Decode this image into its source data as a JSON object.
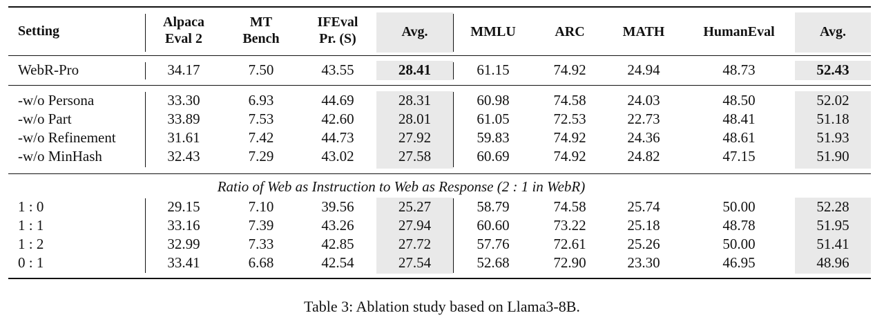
{
  "table": {
    "headers": {
      "setting": "Setting",
      "alpaca": [
        "Alpaca",
        "Eval 2"
      ],
      "mt": [
        "MT",
        "Bench"
      ],
      "ifeval": [
        "IFEval",
        "Pr. (S)"
      ],
      "avg1": "Avg.",
      "mmlu": "MMLU",
      "arc": "ARC",
      "math": "MATH",
      "humaneval": "HumanEval",
      "avg2": "Avg."
    },
    "main_row": {
      "setting": "WebR-Pro",
      "values": [
        "34.17",
        "7.50",
        "43.55",
        "28.41",
        "61.15",
        "74.92",
        "24.94",
        "48.73",
        "52.43"
      ]
    },
    "ablation_rows": [
      {
        "setting": "-w/o Persona",
        "values": [
          "33.30",
          "6.93",
          "44.69",
          "28.31",
          "60.98",
          "74.58",
          "24.03",
          "48.50",
          "52.02"
        ]
      },
      {
        "setting": "-w/o Part",
        "values": [
          "33.89",
          "7.53",
          "42.60",
          "28.01",
          "61.05",
          "72.53",
          "22.73",
          "48.41",
          "51.18"
        ]
      },
      {
        "setting": "-w/o Refinement",
        "values": [
          "31.61",
          "7.42",
          "44.73",
          "27.92",
          "59.83",
          "74.92",
          "24.36",
          "48.61",
          "51.93"
        ]
      },
      {
        "setting": "-w/o MinHash",
        "values": [
          "32.43",
          "7.29",
          "43.02",
          "27.58",
          "60.69",
          "74.92",
          "24.82",
          "47.15",
          "51.90"
        ]
      }
    ],
    "ratio_title": "Ratio of Web as Instruction to Web as Response (2 : 1 in WebR)",
    "ratio_rows": [
      {
        "setting": "1 : 0",
        "values": [
          "29.15",
          "7.10",
          "39.56",
          "25.27",
          "58.79",
          "74.58",
          "25.74",
          "50.00",
          "52.28"
        ]
      },
      {
        "setting": "1 : 1",
        "values": [
          "33.16",
          "7.39",
          "43.26",
          "27.94",
          "60.60",
          "73.22",
          "25.18",
          "48.78",
          "51.95"
        ]
      },
      {
        "setting": "1 : 2",
        "values": [
          "32.99",
          "7.33",
          "42.85",
          "27.72",
          "57.76",
          "72.61",
          "25.26",
          "50.00",
          "51.41"
        ]
      },
      {
        "setting": "0 : 1",
        "values": [
          "33.41",
          "6.68",
          "42.54",
          "27.54",
          "52.68",
          "72.90",
          "23.30",
          "46.95",
          "48.96"
        ]
      }
    ]
  },
  "caption": "Table 3: Ablation study based on Llama3-8B."
}
